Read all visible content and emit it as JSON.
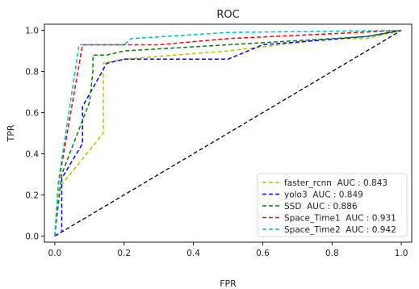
{
  "chart_data": {
    "type": "line",
    "title": "ROC",
    "xlabel": "FPR",
    "ylabel": "TPR",
    "xlim": [
      -0.03,
      1.03
    ],
    "ylim": [
      -0.03,
      1.03
    ],
    "xticks": [
      0.0,
      0.2,
      0.4,
      0.6,
      0.8,
      1.0
    ],
    "xtick_labels": [
      "0.0",
      "0.2",
      "0.4",
      "0.6",
      "0.8",
      "1.0"
    ],
    "yticks": [
      0.0,
      0.2,
      0.4,
      0.6,
      0.8,
      1.0
    ],
    "ytick_labels": [
      "0.0",
      "0.2",
      "0.4",
      "0.6",
      "0.8",
      "1.0"
    ],
    "grid": false,
    "legend_position": "lower-right",
    "diagonal": {
      "x": [
        0,
        1
      ],
      "y": [
        0,
        1
      ],
      "color": "#000000",
      "style": "dashed"
    },
    "series": [
      {
        "name": "faster_rcnn  AUC : 0.843",
        "color": "#bfbf00",
        "style": "dashed",
        "x": [
          0,
          0.01,
          0.02,
          0.14,
          0.14,
          0.2,
          0.5,
          0.8,
          0.9,
          1.0
        ],
        "y": [
          0,
          0.22,
          0.25,
          0.5,
          0.84,
          0.86,
          0.9,
          0.96,
          0.96,
          1.0
        ]
      },
      {
        "name": "yolo3  AUC : 0.849",
        "color": "#0000ff",
        "style": "dashed",
        "x": [
          0,
          0.02,
          0.02,
          0.08,
          0.08,
          0.15,
          0.2,
          0.5,
          0.6,
          0.9,
          1.0
        ],
        "y": [
          0,
          0.02,
          0.28,
          0.45,
          0.63,
          0.84,
          0.86,
          0.86,
          0.93,
          0.97,
          1.0
        ]
      },
      {
        "name": "SSD  AUC : 0.886",
        "color": "#008000",
        "style": "dashed",
        "x": [
          0,
          0.02,
          0.1,
          0.11,
          0.11,
          0.15,
          0.2,
          0.4,
          0.7,
          0.9,
          1.0
        ],
        "y": [
          0,
          0.3,
          0.65,
          0.8,
          0.88,
          0.88,
          0.9,
          0.92,
          0.95,
          0.97,
          1.0
        ]
      },
      {
        "name": "Space_Time1  AUC : 0.931",
        "color": "#ff0000",
        "style": "dashed",
        "x": [
          0,
          0.01,
          0.08,
          0.1,
          0.3,
          0.5,
          1.0
        ],
        "y": [
          0,
          0.25,
          0.93,
          0.93,
          0.93,
          0.96,
          1.0
        ]
      },
      {
        "name": "Space_Time2  AUC : 0.942",
        "color": "#00bfbf",
        "style": "dashed",
        "x": [
          0,
          0.01,
          0.07,
          0.08,
          0.2,
          0.22,
          0.5,
          1.0
        ],
        "y": [
          0,
          0.26,
          0.93,
          0.93,
          0.93,
          0.96,
          0.99,
          1.0
        ]
      }
    ]
  }
}
